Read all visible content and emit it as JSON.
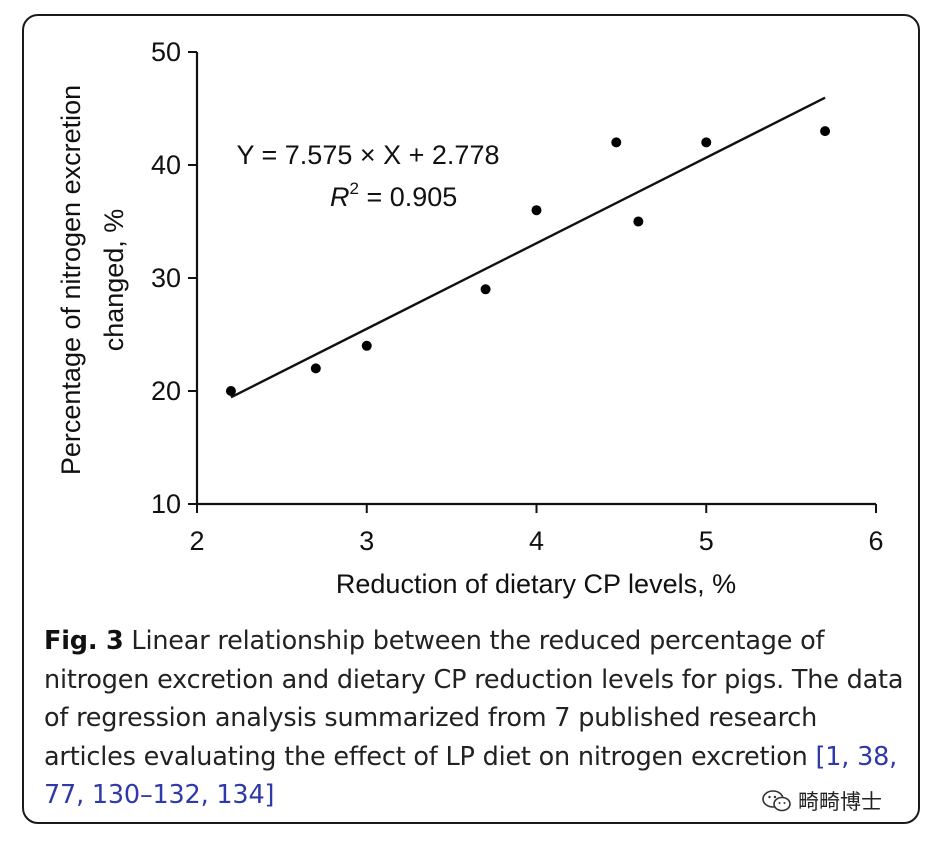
{
  "chart_data": {
    "type": "scatter",
    "xlabel": "Reduction of dietary CP levels, %",
    "ylabel_line1": "Percentage of nitrogen excretion",
    "ylabel_line2": "changed, %",
    "xlim": [
      2,
      6
    ],
    "ylim": [
      10,
      50
    ],
    "x_ticks": [
      "2",
      "3",
      "4",
      "5",
      "6"
    ],
    "y_ticks": [
      "10",
      "20",
      "30",
      "40",
      "50"
    ],
    "points": [
      {
        "x": 2.2,
        "y": 20
      },
      {
        "x": 2.7,
        "y": 22
      },
      {
        "x": 3.0,
        "y": 24
      },
      {
        "x": 3.7,
        "y": 29
      },
      {
        "x": 4.0,
        "y": 36
      },
      {
        "x": 4.47,
        "y": 42
      },
      {
        "x": 4.6,
        "y": 35
      },
      {
        "x": 5.0,
        "y": 42
      },
      {
        "x": 5.7,
        "y": 43
      }
    ],
    "fit_line": {
      "slope": 7.575,
      "intercept": 2.778,
      "x_range": [
        2.2,
        5.7
      ]
    },
    "equation": "Y = 7.575 × X + 2.778",
    "r2_label": "R",
    "r2_sup": "2",
    "r2_value": " = 0.905",
    "grid": false,
    "marker_color": "#000000"
  },
  "caption": {
    "fig_label": "Fig. 3",
    "text": " Linear relationship between the reduced percentage of nitrogen excretion and dietary CP reduction levels for pigs. The data of regression analysis summarized from 7 published research articles evaluating the effect of LP diet on nitrogen excretion ",
    "bracket_open": "[",
    "refs": [
      "1",
      "38",
      "77",
      "130–132",
      "134"
    ],
    "bracket_close": "]"
  },
  "watermark": {
    "text": "畸畸博士",
    "icon": "wechat-icon"
  }
}
